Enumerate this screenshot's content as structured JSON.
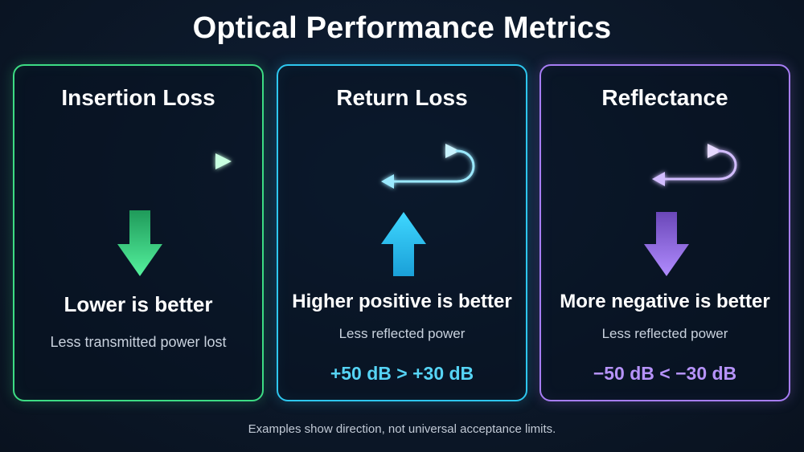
{
  "title": "Optical Performance Metrics",
  "cards": [
    {
      "title": "Insertion Loss",
      "verdict": "Lower is better",
      "description": "Less transmitted power lost",
      "example": "",
      "accent": "#3ddc84",
      "signal_icon": "forward-beam-icon",
      "direction_icon": "down-arrow-icon"
    },
    {
      "title": "Return Loss",
      "verdict": "Higher positive is better",
      "description": "Less reflected power",
      "example": "+50 dB > +30 dB",
      "accent": "#2ec7ef",
      "signal_icon": "reflected-beam-icon",
      "direction_icon": "up-arrow-icon"
    },
    {
      "title": "Reflectance",
      "verdict": "More negative is better",
      "description": "Less reflected power",
      "example": "−50 dB < −30 dB",
      "accent": "#a77df5",
      "signal_icon": "reflected-beam-icon",
      "direction_icon": "down-arrow-icon"
    }
  ],
  "footnote": "Examples show direction, not universal acceptance limits."
}
